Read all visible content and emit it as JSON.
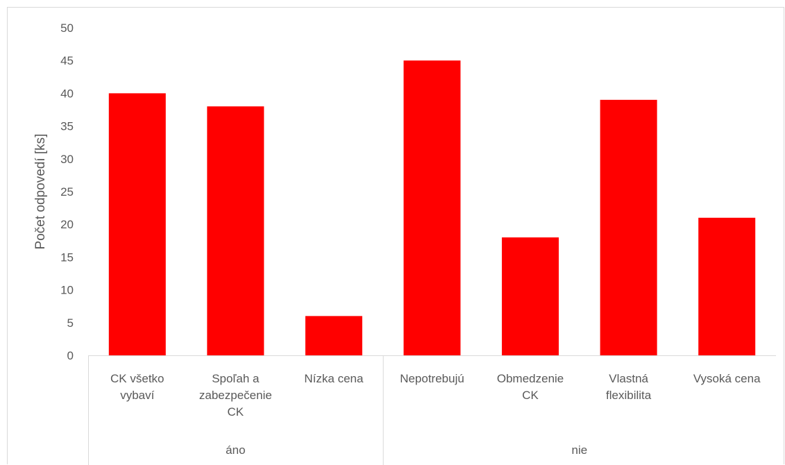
{
  "chart_data": {
    "type": "bar",
    "title": "",
    "ylabel": "Počet odpovedí [ks]",
    "xlabel": "",
    "ylim": [
      0,
      50
    ],
    "yticks": [
      0,
      5,
      10,
      15,
      20,
      25,
      30,
      35,
      40,
      45,
      50
    ],
    "grid": false,
    "legend": "none",
    "bar_color": "#ff0000",
    "groups": [
      {
        "label": "áno",
        "categories": [
          [
            "CK všetko",
            "vybaví"
          ],
          [
            "Spoľah a",
            "zabezpečenie",
            "CK"
          ],
          [
            "Nízka cena"
          ]
        ]
      },
      {
        "label": "nie",
        "categories": [
          [
            "Nepotrebujú"
          ],
          [
            "Obmedzenie",
            "CK"
          ],
          [
            "Vlastná",
            "flexibilita"
          ],
          [
            "Vysoká cena"
          ]
        ]
      }
    ],
    "categories": [
      "CK všetko vybaví",
      "Spoľah a zabezpečenie CK",
      "Nízka cena",
      "Nepotrebujú",
      "Obmedzenie CK",
      "Vlastná flexibilita",
      "Vysoká cena"
    ],
    "values": [
      40,
      38,
      6,
      45,
      18,
      39,
      21
    ]
  }
}
